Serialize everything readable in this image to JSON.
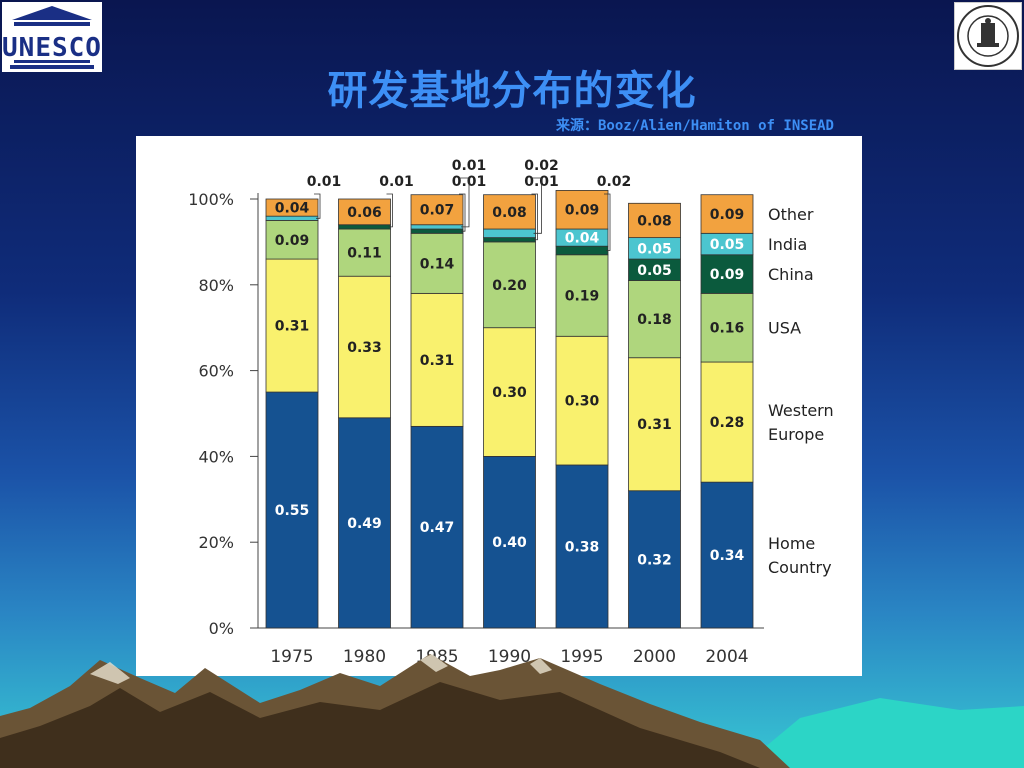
{
  "title": "研发基地分布的变化",
  "source": "来源：Booz/Alien/Hamiton of INSEAD",
  "logos": {
    "left_text": "UNESCO"
  },
  "colors": {
    "Home Country": "#155291",
    "Western Europe": "#f9f16e",
    "USA": "#afd67d",
    "China": "#0b5a3d",
    "India": "#4cc5cf",
    "Other": "#f2a23f"
  },
  "chart_data": {
    "type": "bar",
    "stacked": true,
    "categories": [
      "1975",
      "1980",
      "1985",
      "1990",
      "1995",
      "2000",
      "2004"
    ],
    "ylim": [
      0,
      1
    ],
    "ytick_labels": [
      "0%",
      "20%",
      "40%",
      "60%",
      "80%",
      "100%"
    ],
    "series": [
      {
        "name": "Home Country",
        "values": [
          0.55,
          0.49,
          0.47,
          0.4,
          0.38,
          0.32,
          0.34
        ]
      },
      {
        "name": "Western Europe",
        "values": [
          0.31,
          0.33,
          0.31,
          0.3,
          0.3,
          0.31,
          0.28
        ]
      },
      {
        "name": "USA",
        "values": [
          0.09,
          0.11,
          0.14,
          0.2,
          0.19,
          0.18,
          0.16
        ]
      },
      {
        "name": "China",
        "values": [
          0,
          0.01,
          0.01,
          0.01,
          0.02,
          0.05,
          0.09
        ]
      },
      {
        "name": "India",
        "values": [
          0.01,
          0,
          0.01,
          0.02,
          0.04,
          0.05,
          0.05
        ]
      },
      {
        "name": "Other",
        "values": [
          0.04,
          0.06,
          0.07,
          0.08,
          0.09,
          0.08,
          0.09
        ]
      }
    ],
    "legend": [
      {
        "text": "Other",
        "lines": [
          "Other"
        ]
      },
      {
        "text": "India",
        "lines": [
          "India"
        ]
      },
      {
        "text": "China",
        "lines": [
          "China"
        ]
      },
      {
        "text": "USA",
        "lines": [
          "USA"
        ]
      },
      {
        "text": "Western Europe",
        "lines": [
          "Western",
          "Europe"
        ]
      },
      {
        "text": "Home Country",
        "lines": [
          "Home",
          "Country"
        ]
      }
    ],
    "legend_position": "right",
    "callouts": [
      {
        "category": "1975",
        "series": "India",
        "label": "0.01"
      },
      {
        "category": "1980",
        "series": "China",
        "label": "0.01"
      },
      {
        "category": "1985",
        "series": "China",
        "label": "0.01"
      },
      {
        "category": "1985",
        "series": "India",
        "label": "0.01"
      },
      {
        "category": "1990",
        "series": "China",
        "label": "0.01"
      },
      {
        "category": "1990",
        "series": "India",
        "label": "0.02"
      },
      {
        "category": "1995",
        "series": "China",
        "label": "0.02"
      }
    ]
  }
}
